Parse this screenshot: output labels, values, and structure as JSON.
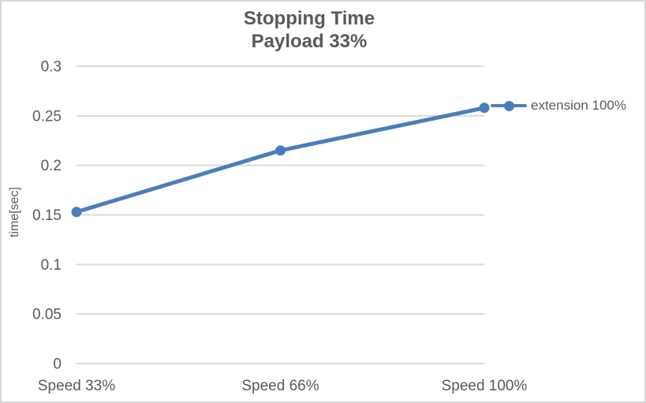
{
  "colors": {
    "text": "#595959",
    "grid": "#d9d9d9",
    "border": "#d6d6d6",
    "background": "#ffffff",
    "series": "#4a7ebb"
  },
  "chart_data": {
    "type": "line",
    "title": "Stopping Time",
    "subtitle": "Payload 33%",
    "xlabel": "",
    "ylabel": "time[sec]",
    "categories": [
      "Speed 33%",
      "Speed 66%",
      "Speed 100%"
    ],
    "series": [
      {
        "name": "extension 100%",
        "color": "#4a7ebb",
        "values": [
          0.153,
          0.215,
          0.258
        ],
        "marker": "circle"
      }
    ],
    "ylim": [
      0,
      0.3
    ],
    "ytick_step": 0.05,
    "yticks": [
      "0",
      "0.05",
      "0.1",
      "0.15",
      "0.2",
      "0.25",
      "0.3"
    ],
    "grid": "horizontal",
    "legend_position": "right-of-last-point"
  }
}
